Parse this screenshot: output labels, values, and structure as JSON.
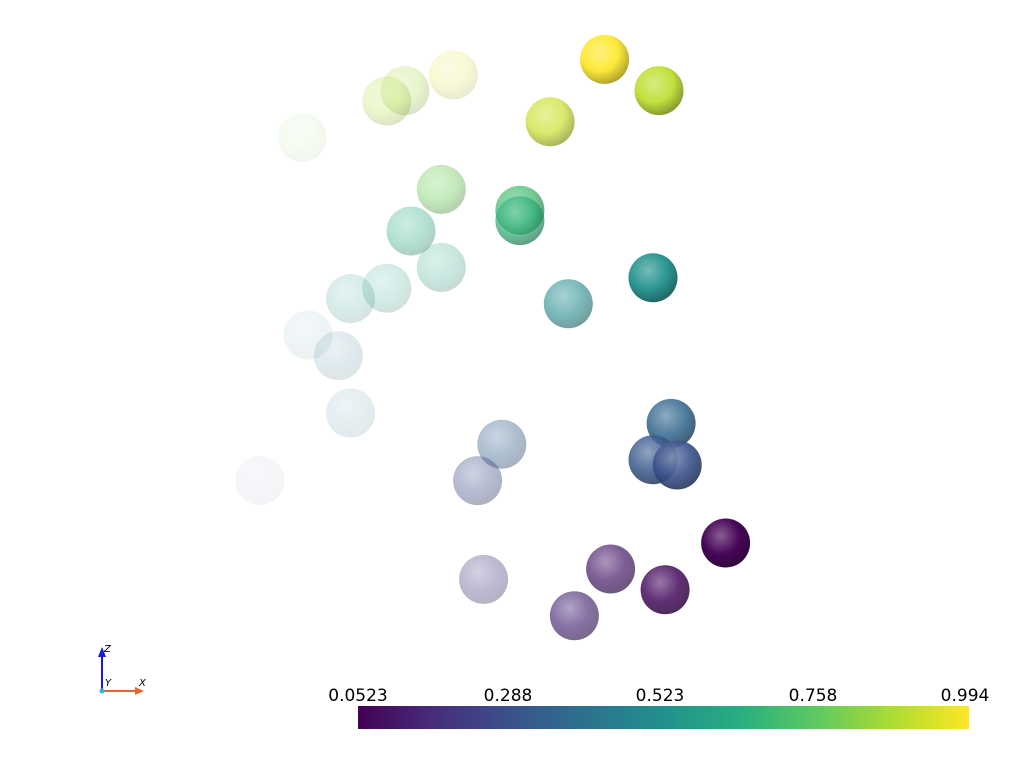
{
  "chart_data": {
    "type": "scatter",
    "title": "",
    "colormap": "viridis",
    "colorbar": {
      "ticks": [
        "0.0523",
        "0.288",
        "0.523",
        "0.758",
        "0.994"
      ],
      "min": 0.0523,
      "max": 0.994,
      "colors": [
        "#440154",
        "#3b528b",
        "#21918c",
        "#5ec962",
        "#fde725"
      ]
    },
    "axes_widget": {
      "labels": {
        "z": "Z",
        "y": "Y",
        "x": "X"
      }
    },
    "points": [
      {
        "x": 5.2,
        "z": 9.3,
        "value": 0.994,
        "opacity": 0.9
      },
      {
        "x": 6.1,
        "z": 8.7,
        "value": 0.9,
        "opacity": 0.92
      },
      {
        "x": 4.3,
        "z": 8.1,
        "value": 0.92,
        "opacity": 0.7
      },
      {
        "x": 2.7,
        "z": 9.0,
        "value": 0.94,
        "opacity": 0.2
      },
      {
        "x": 1.9,
        "z": 8.7,
        "value": 0.86,
        "opacity": 0.25
      },
      {
        "x": 1.6,
        "z": 8.5,
        "value": 0.88,
        "opacity": 0.25
      },
      {
        "x": 0.2,
        "z": 7.8,
        "value": 0.8,
        "opacity": 0.08
      },
      {
        "x": 2.5,
        "z": 6.8,
        "value": 0.78,
        "opacity": 0.4
      },
      {
        "x": 3.8,
        "z": 6.4,
        "value": 0.7,
        "opacity": 0.75
      },
      {
        "x": 3.8,
        "z": 6.2,
        "value": 0.66,
        "opacity": 0.7
      },
      {
        "x": 2.0,
        "z": 6.0,
        "value": 0.64,
        "opacity": 0.35
      },
      {
        "x": 2.5,
        "z": 5.3,
        "value": 0.6,
        "opacity": 0.25
      },
      {
        "x": 1.6,
        "z": 4.9,
        "value": 0.58,
        "opacity": 0.2
      },
      {
        "x": 1.0,
        "z": 4.7,
        "value": 0.55,
        "opacity": 0.18
      },
      {
        "x": 6.0,
        "z": 5.1,
        "value": 0.523,
        "opacity": 0.95
      },
      {
        "x": 4.6,
        "z": 4.6,
        "value": 0.5,
        "opacity": 0.6
      },
      {
        "x": 0.3,
        "z": 4.0,
        "value": 0.45,
        "opacity": 0.08
      },
      {
        "x": 0.8,
        "z": 3.6,
        "value": 0.42,
        "opacity": 0.15
      },
      {
        "x": 1.0,
        "z": 2.5,
        "value": 0.4,
        "opacity": 0.12
      },
      {
        "x": 6.3,
        "z": 2.3,
        "value": 0.36,
        "opacity": 0.85
      },
      {
        "x": 3.5,
        "z": 1.9,
        "value": 0.34,
        "opacity": 0.4
      },
      {
        "x": 6.0,
        "z": 1.6,
        "value": 0.31,
        "opacity": 0.85
      },
      {
        "x": 6.4,
        "z": 1.5,
        "value": 0.288,
        "opacity": 0.9
      },
      {
        "x": -0.5,
        "z": 1.2,
        "value": 0.26,
        "opacity": 0.05
      },
      {
        "x": 3.1,
        "z": 1.2,
        "value": 0.27,
        "opacity": 0.38
      },
      {
        "x": 7.2,
        "z": 0.0,
        "value": 0.0523,
        "opacity": 0.98
      },
      {
        "x": 5.3,
        "z": -0.5,
        "value": 0.12,
        "opacity": 0.7
      },
      {
        "x": 6.2,
        "z": -0.9,
        "value": 0.08,
        "opacity": 0.85
      },
      {
        "x": 3.2,
        "z": -0.7,
        "value": 0.2,
        "opacity": 0.35
      },
      {
        "x": 4.7,
        "z": -1.4,
        "value": 0.15,
        "opacity": 0.65
      }
    ]
  }
}
